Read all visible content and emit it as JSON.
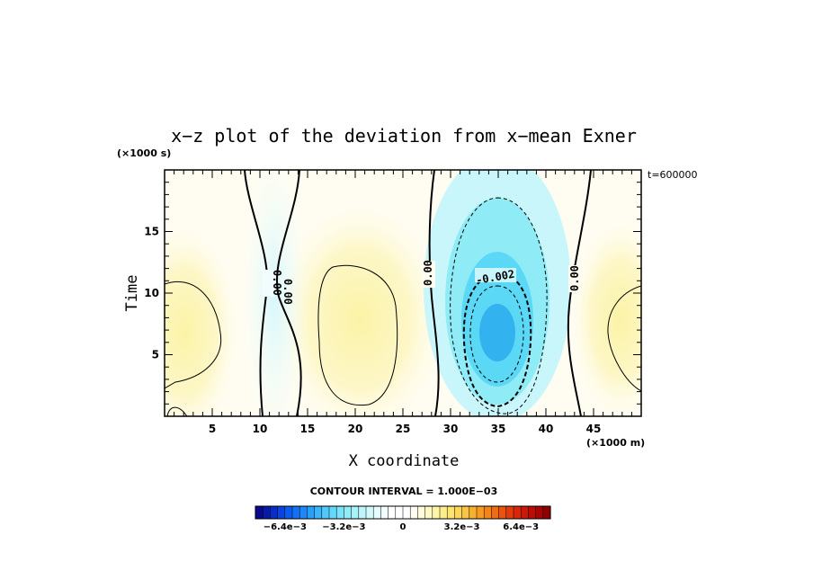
{
  "chart_data": {
    "type": "heatmap",
    "title": "x−z plot of the deviation from x−mean Exner",
    "xlabel": "X coordinate",
    "ylabel": "Time",
    "x_scale_label": "(×1000 m)",
    "y_scale_label": "(×1000 s)",
    "timestamp": "t=600000",
    "xlim": [
      0,
      50
    ],
    "ylim": [
      0,
      20
    ],
    "x_ticks": [
      "5",
      "10",
      "15",
      "20",
      "25",
      "30",
      "35",
      "40",
      "45"
    ],
    "y_ticks": [
      "5",
      "10",
      "15"
    ],
    "contour_interval_text": "CONTOUR INTERVAL = 1.000E−03",
    "contour_labels": [
      "0.00",
      "0.00",
      "0.00",
      "-0.002",
      "0.00"
    ],
    "colorbar": {
      "min": -0.008,
      "max": 0.008,
      "tick_labels": [
        "−6.4e−3",
        "−3.2e−3",
        "0",
        "3.2e−3",
        "6.4e−3"
      ]
    },
    "features": [
      {
        "kind": "minimum",
        "x": 35,
        "y": 6.5,
        "value": -0.0055
      },
      {
        "kind": "maximum",
        "x": 21,
        "y": 8,
        "value": 0.0015
      },
      {
        "kind": "maximum",
        "x": 3,
        "y": 8,
        "value": 0.0015
      },
      {
        "kind": "maximum",
        "x": 48,
        "y": 8,
        "value": 0.001
      },
      {
        "kind": "minimum",
        "x": 12,
        "y": 10,
        "value": -0.0007
      }
    ],
    "zero_contours_x": [
      10.5,
      28,
      42
    ]
  }
}
